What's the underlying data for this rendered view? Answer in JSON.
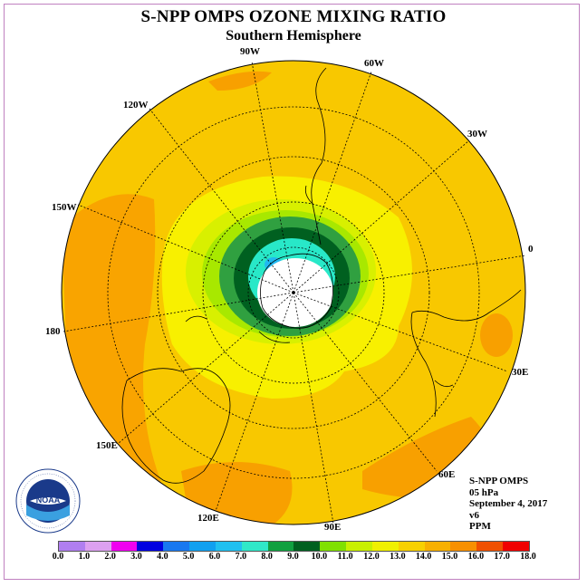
{
  "title": "S-NPP OMPS OZONE MIXING RATIO",
  "subtitle": "Southern Hemisphere",
  "longitude_labels": {
    "w90": "90W",
    "w60": "60W",
    "w30": "30W",
    "zero": "0",
    "e30": "30E",
    "e60": "60E",
    "e90": "90E",
    "e120": "120E",
    "e150": "150E",
    "lon180": "180",
    "w150": "150W",
    "w120": "120W"
  },
  "info": {
    "instrument": "S-NPP OMPS",
    "level": "05 hPa",
    "date": "September 4, 2017",
    "version": "v6",
    "units": "PPM"
  },
  "colorbar": {
    "labels": [
      "0.0",
      "1.0",
      "2.0",
      "3.0",
      "4.0",
      "5.0",
      "6.0",
      "7.0",
      "8.0",
      "9.0",
      "10.0",
      "11.0",
      "12.0",
      "13.0",
      "14.0",
      "15.0",
      "16.0",
      "17.0",
      "18.0"
    ],
    "colors": [
      "#b07ef0",
      "#dca0f0",
      "#f000f0",
      "#0000e0",
      "#1878f0",
      "#10a0f0",
      "#20c0f0",
      "#30e8c8",
      "#10a040",
      "#006020",
      "#80e000",
      "#c8f000",
      "#f0f000",
      "#f8d000",
      "#f8b000",
      "#f89000",
      "#f05000",
      "#f00000",
      "#805030"
    ]
  },
  "logo": {
    "text": "NOAA",
    "ring_text": "NATIONAL OCEANIC AND ATMOSPHERIC ADMINISTRATION"
  },
  "colors": {
    "ocean_base": "#f8c800",
    "high": "#f8a000",
    "mid": "#f8f000",
    "low": "#c8f000",
    "dark": "#006020",
    "frame": "#c080c0"
  }
}
